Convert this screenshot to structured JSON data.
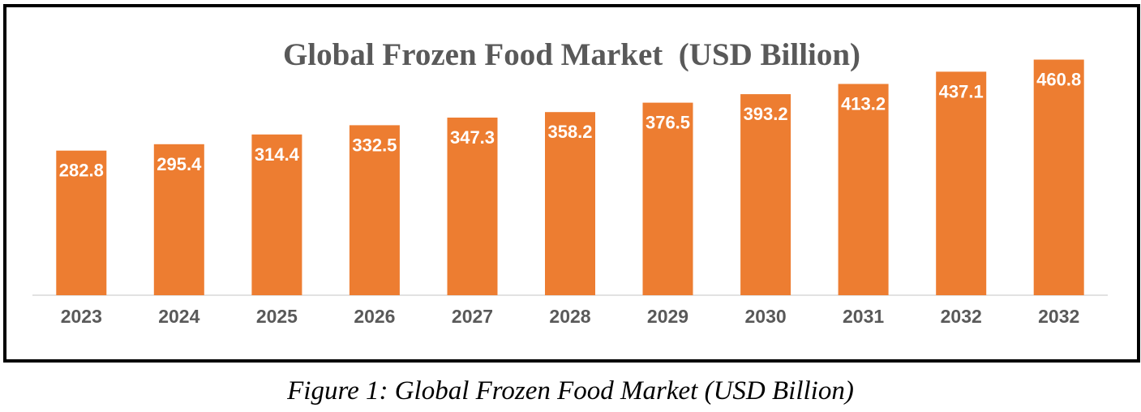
{
  "chart_data": {
    "type": "bar",
    "title": "Global Frozen Food Market  (USD Billion)",
    "categories": [
      "2023",
      "2024",
      "2025",
      "2026",
      "2027",
      "2028",
      "2029",
      "2030",
      "2031",
      "2032",
      "2032"
    ],
    "values": [
      282.8,
      295.4,
      314.4,
      332.5,
      347.3,
      358.2,
      376.5,
      393.2,
      413.2,
      437.1,
      460.8
    ],
    "data_labels": [
      "282.8",
      "295.4",
      "314.4",
      "332.5",
      "347.3",
      "358.2",
      "376.5",
      "393.2",
      "413.2",
      "437.1",
      "460.8"
    ],
    "xlabel": "",
    "ylabel": "",
    "ylim": [
      0,
      500
    ],
    "grid": false,
    "legend": "none",
    "bar_color": "#ED7D31",
    "label_color": "#FFFFFF",
    "axis_color": "#D9D9D9",
    "tick_label_color": "#595959"
  },
  "caption": "Figure 1: Global Frozen Food Market (USD Billion)"
}
